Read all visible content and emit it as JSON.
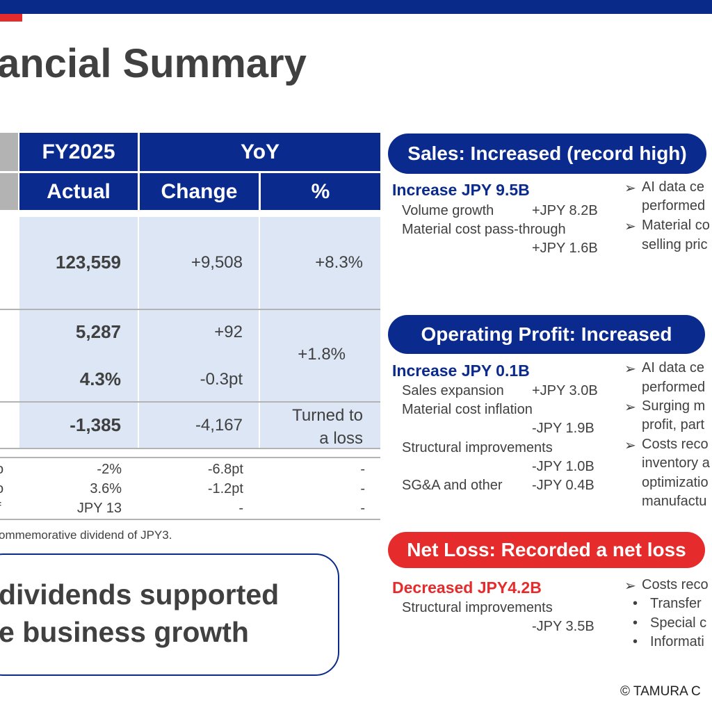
{
  "title": "ancial Summary",
  "table": {
    "headers": {
      "fy": "FY2025",
      "yoy": "YoY",
      "actual": "Actual",
      "change": "Change",
      "pct": "%"
    },
    "rows": [
      {
        "actual": "123,559",
        "change": "+9,508",
        "pct": "+8.3%"
      },
      {
        "actual": "5,287",
        "change": "+92",
        "pct": "+1.8%"
      },
      {
        "actual": "4.3%",
        "change": "-0.3pt"
      },
      {
        "actual": "-1,385",
        "change": "-4,167",
        "pct_line1": "Turned to",
        "pct_line2": "a loss"
      }
    ],
    "small_rows": [
      {
        "mark": "o",
        "actual": "-2%",
        "change": "-6.8pt",
        "pct": "-"
      },
      {
        "mark": "o",
        "actual": "3.6%",
        "change": "-1.2pt",
        "pct": "-"
      },
      {
        "mark": "f",
        "actual": "JPY 13",
        "change": "-",
        "pct": "-"
      }
    ],
    "footnote": "ommemorative dividend of JPY3."
  },
  "callout": {
    "line1": "dividends supported",
    "line2": "e business growth"
  },
  "sales": {
    "pill": "Sales: Increased (record high)",
    "headline": "Increase JPY 9.5B",
    "items": [
      {
        "label": "Volume growth",
        "value": "+JPY 8.2B"
      },
      {
        "label": "Material cost pass-through",
        "value": "+JPY 1.6B"
      }
    ],
    "bullets": [
      "AI data ce",
      "performed",
      "Material co",
      "selling pric"
    ]
  },
  "op": {
    "pill": "Operating Profit: Increased",
    "headline": "Increase JPY 0.1B",
    "items": [
      {
        "label": "Sales expansion",
        "value": "+JPY 3.0B"
      },
      {
        "label": "Material cost inflation",
        "value": "-JPY 1.9B"
      },
      {
        "label": "Structural improvements",
        "value": "-JPY 1.0B"
      },
      {
        "label": "SG&A and other",
        "value": "-JPY 0.4B"
      }
    ],
    "bullets": [
      "AI data ce",
      "performed",
      "Surging m",
      "profit, part",
      "Costs reco",
      "inventory a",
      "optimizatio",
      "manufactu"
    ]
  },
  "net": {
    "pill": "Net Loss: Recorded a net loss",
    "headline": "Decreased JPY4.2B",
    "items": [
      {
        "label": "Structural improvements",
        "value": "-JPY 3.5B"
      }
    ],
    "bullets": [
      "Costs reco",
      "Transfer",
      "Special c",
      "Informati"
    ]
  },
  "copyright": "© TAMURA C",
  "colors": {
    "navy": "#0b2a8e",
    "red": "#e52b2b",
    "cell": "#dce6f4",
    "gray": "#b3b3b3"
  },
  "icons": {
    "bullet": "arrow-bullet-icon"
  }
}
